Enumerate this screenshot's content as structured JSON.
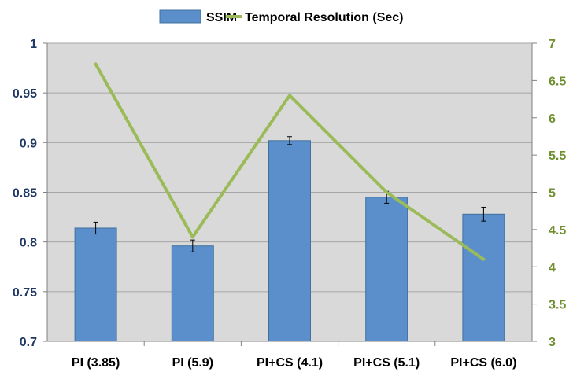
{
  "chart_data": {
    "type": "bar+line",
    "categories": [
      "PI (3.85)",
      "PI (5.9)",
      "PI+CS (4.1)",
      "PI+CS (5.1)",
      "PI+CS (6.0)"
    ],
    "series": [
      {
        "name": "SSIM",
        "type": "bar",
        "axis": "left",
        "values": [
          0.814,
          0.796,
          0.902,
          0.845,
          0.828
        ],
        "errors": [
          0.006,
          0.006,
          0.004,
          0.006,
          0.007
        ],
        "color": "#5b8fcc"
      },
      {
        "name": "Temporal Resolution (Sec)",
        "type": "line",
        "axis": "right",
        "values": [
          6.72,
          4.4,
          6.3,
          5.0,
          4.1
        ],
        "color": "#9bbb59"
      }
    ],
    "left_axis": {
      "ylim": [
        0.7,
        1.0
      ],
      "ticks": [
        "0.7",
        "0.75",
        "0.8",
        "0.85",
        "0.9",
        "0.95",
        "1"
      ],
      "label_color": "#1f3864"
    },
    "right_axis": {
      "ylim": [
        3,
        7
      ],
      "ticks": [
        "3",
        "3.5",
        "4",
        "4.5",
        "5",
        "5.5",
        "6",
        "6.5",
        "7"
      ],
      "label_color": "#6f8f2f"
    },
    "legend_position": "top",
    "plot_background": "#d9d9d9",
    "grid": true,
    "grid_color": "#a6a6a6"
  }
}
